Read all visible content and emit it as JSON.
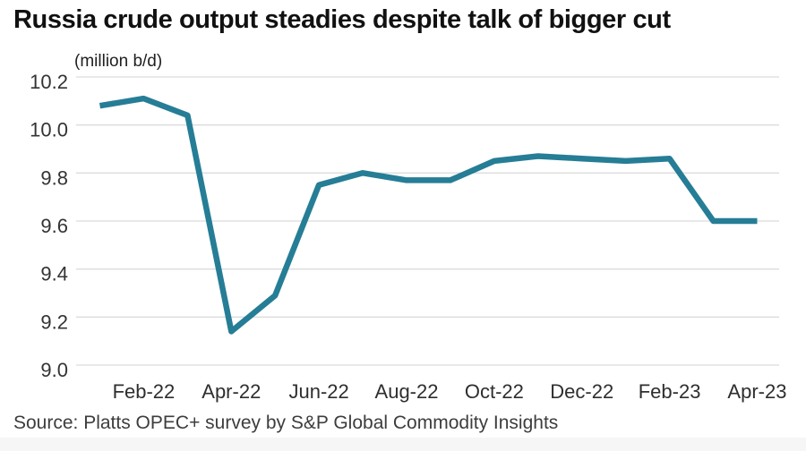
{
  "chart_data": {
    "type": "line",
    "title": "Russia crude output steadies despite talk of bigger cut",
    "units_label": "(million b/d)",
    "source": "Source: Platts OPEC+ survey by S&P Global Commodity Insights",
    "series_name": "Russia crude output (million b/d)",
    "categories": [
      "Jan-22",
      "Feb-22",
      "Mar-22",
      "Apr-22",
      "May-22",
      "Jun-22",
      "Jul-22",
      "Aug-22",
      "Sep-22",
      "Oct-22",
      "Nov-22",
      "Dec-22",
      "Jan-23",
      "Feb-23",
      "Mar-23",
      "Apr-23"
    ],
    "values": [
      10.08,
      10.11,
      10.04,
      9.14,
      9.29,
      9.75,
      9.8,
      9.77,
      9.77,
      9.85,
      9.87,
      9.86,
      9.85,
      9.86,
      9.6,
      9.6
    ],
    "x_tick_labels": [
      "Feb-22",
      "Apr-22",
      "Jun-22",
      "Aug-22",
      "Oct-22",
      "Dec-22",
      "Feb-23",
      "Apr-23"
    ],
    "y_tick_labels": [
      "9.0",
      "9.2",
      "9.4",
      "9.6",
      "9.8",
      "10.0",
      "10.2"
    ],
    "ylim": [
      9.0,
      10.2
    ],
    "grid": "horizontal-only",
    "legend": "none",
    "line_color": "#267d96",
    "gridline_color": "#dcdcdc",
    "line_width": 6.5
  }
}
